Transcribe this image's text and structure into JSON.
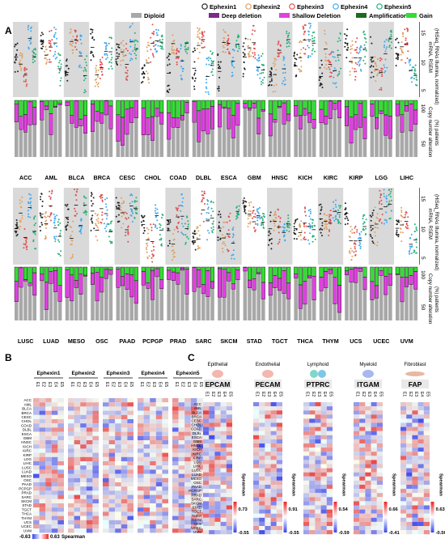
{
  "figure": {
    "panel_labels": {
      "a": "A",
      "b": "B",
      "c": "C"
    },
    "legend": {
      "genes": [
        {
          "name": "Ephexin1",
          "color": "#222222"
        },
        {
          "name": "Ephexin2",
          "color": "#e0a060"
        },
        {
          "name": "Ephexin3",
          "color": "#e05050"
        },
        {
          "name": "Ephexin4",
          "color": "#3fa8ee"
        },
        {
          "name": "Ephexin5",
          "color": "#27b07a"
        }
      ],
      "cnv": [
        {
          "name": "Diploid",
          "color": "#a8a8a8"
        },
        {
          "name": "Deep deletion",
          "color": "#7a2a8a"
        },
        {
          "name": "Shallow Deletion",
          "color": "#e040e0"
        },
        {
          "name": "Amplification",
          "color": "#1d6b1d"
        },
        {
          "name": "Gain",
          "color": "#33dd33"
        }
      ]
    },
    "panel_a": {
      "cancers_row1": [
        "ACC",
        "AML",
        "BLCA",
        "BRCA",
        "CESC",
        "CHOL",
        "COAD",
        "DLBL",
        "ESCA",
        "GBM",
        "HNSC",
        "KICH",
        "KIRC",
        "KIRP",
        "LGG",
        "LIHC"
      ],
      "cancers_row2": [
        "LUSC",
        "LUAD",
        "MESO",
        "OSC",
        "PAAD",
        "PCPGP",
        "PRAD",
        "SARC",
        "SKCM",
        "STAD",
        "TGCT",
        "THCA",
        "THYM",
        "UCS",
        "UCEC",
        "UVM"
      ],
      "expr_axis": {
        "label_line1": "mRNA, RSEM",
        "label_line2": "(HiSeq_RNAs Illumina, normalized)",
        "ticks": [
          "5",
          "10",
          "15"
        ]
      },
      "cnv_axis": {
        "label_line1": "Copy number alteration",
        "label_line2": "(%) patients",
        "ticks": [
          "50",
          "100"
        ]
      }
    },
    "panel_b": {
      "genes": [
        "Ephexin1",
        "Ephexin2",
        "Ephexin3",
        "Ephexin4",
        "Ephexin5"
      ],
      "columns": [
        "E1",
        "E2",
        "E3",
        "E4",
        "E5"
      ],
      "rows": [
        "ACC",
        "AML",
        "BLCA",
        "BRCA",
        "CESC",
        "CHOL",
        "COAD",
        "DLBL",
        "ESCA",
        "GBM",
        "HNSC",
        "KICH",
        "KIRC",
        "KIRP",
        "LGG",
        "LIHC",
        "LUSC",
        "LUAD",
        "MESO",
        "OSC",
        "PAAD",
        "PCPGP",
        "PRAD",
        "SARC",
        "SKCM",
        "STAD",
        "TGCT",
        "THCA",
        "THYM",
        "UCS",
        "UCEC",
        "UVM"
      ],
      "scale": {
        "min": "-0.63",
        "max": "0.63",
        "label": "Spearman"
      }
    },
    "panel_c": {
      "types": [
        {
          "cell": "Epithelial",
          "marker": "EPCAM",
          "min": "-0.55",
          "max": "0.73"
        },
        {
          "cell": "Endothelial",
          "marker": "PECAM",
          "min": "-0.55",
          "max": "0.91"
        },
        {
          "cell": "Lymphoid",
          "marker": "PTPRC",
          "min": "-0.59",
          "max": "0.54"
        },
        {
          "cell": "Myeloid",
          "marker": "ITGAM",
          "min": "-0.41",
          "max": "0.66"
        },
        {
          "cell": "Fibroblast",
          "marker": "FAP",
          "min": "-0.56",
          "max": "0.63"
        }
      ],
      "columns": [
        "E1",
        "E2",
        "E3",
        "E4",
        "E5"
      ],
      "scale_label": "Spearman"
    }
  }
}
